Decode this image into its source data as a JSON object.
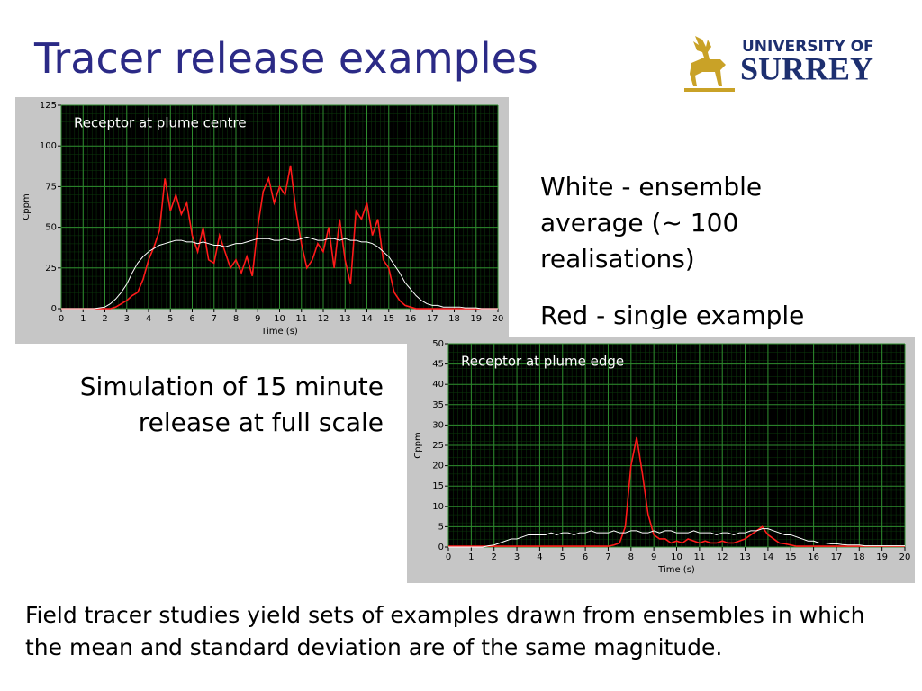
{
  "title": "Tracer release examples",
  "logo": {
    "line1": "UNIVERSITY OF",
    "line2": "SURREY"
  },
  "notes": [
    "White - ensemble average (~ 100 realisations)",
    "Red - single example"
  ],
  "caption": "Simulation of 15 minute release at full scale",
  "footer": "Field tracer studies yield sets of examples drawn from ensembles in which the mean and standard deviation are of the same magnitude.",
  "chart_data": [
    {
      "type": "line",
      "annotation": "Receptor at plume centre",
      "xlabel": "Time (s)",
      "ylabel": "Cppm",
      "x": [
        0,
        0.25,
        0.5,
        0.75,
        1,
        1.25,
        1.5,
        1.75,
        2,
        2.25,
        2.5,
        2.75,
        3,
        3.25,
        3.5,
        3.75,
        4,
        4.25,
        4.5,
        4.75,
        5,
        5.25,
        5.5,
        5.75,
        6,
        6.25,
        6.5,
        6.75,
        7,
        7.25,
        7.5,
        7.75,
        8,
        8.25,
        8.5,
        8.75,
        9,
        9.25,
        9.5,
        9.75,
        10,
        10.25,
        10.5,
        10.75,
        11,
        11.25,
        11.5,
        11.75,
        12,
        12.25,
        12.5,
        12.75,
        13,
        13.25,
        13.5,
        13.75,
        14,
        14.25,
        14.5,
        14.75,
        15,
        15.25,
        15.5,
        15.75,
        16,
        16.25,
        16.5,
        16.75,
        17,
        17.25,
        17.5,
        17.75,
        18,
        18.25,
        18.5,
        18.75,
        19,
        19.25,
        19.5,
        19.75,
        20
      ],
      "series": [
        {
          "color": "#ff1a1a",
          "values": [
            0,
            0,
            0,
            0,
            0,
            0,
            0,
            0,
            0,
            0,
            1,
            3,
            5,
            8,
            10,
            18,
            30,
            38,
            48,
            80,
            60,
            70,
            58,
            65,
            45,
            35,
            50,
            30,
            28,
            45,
            35,
            25,
            30,
            22,
            32,
            20,
            50,
            72,
            80,
            65,
            75,
            70,
            88,
            60,
            40,
            25,
            30,
            40,
            35,
            50,
            25,
            55,
            30,
            15,
            60,
            55,
            65,
            45,
            55,
            30,
            25,
            10,
            5,
            2,
            1,
            0,
            0,
            0,
            0,
            0,
            0,
            0,
            0,
            0,
            0,
            0,
            0,
            0,
            0,
            0,
            0
          ]
        },
        {
          "color": "#ffffff",
          "values": [
            0,
            0,
            0,
            0,
            0,
            0,
            0,
            0.5,
            1,
            3,
            6,
            10,
            15,
            22,
            28,
            32,
            35,
            37,
            39,
            40,
            41,
            42,
            42,
            41,
            41,
            40,
            41,
            40,
            39,
            39,
            38,
            39,
            40,
            40,
            41,
            42,
            43,
            43,
            43,
            42,
            42,
            43,
            42,
            42,
            43,
            44,
            43,
            42,
            42,
            43,
            43,
            42,
            43,
            42,
            42,
            41,
            41,
            40,
            38,
            35,
            32,
            27,
            22,
            16,
            12,
            8,
            5,
            3,
            2,
            2,
            1,
            1,
            1,
            1,
            0.5,
            0.5,
            0.5,
            0,
            0,
            0,
            0
          ]
        }
      ],
      "xlim": [
        0,
        20
      ],
      "ylim": [
        0,
        125
      ],
      "xticks": [
        0,
        1,
        2,
        3,
        4,
        5,
        6,
        7,
        8,
        9,
        10,
        11,
        12,
        13,
        14,
        15,
        16,
        17,
        18,
        19,
        20
      ],
      "yticks": [
        0,
        25,
        50,
        75,
        100,
        125
      ],
      "grid": true
    },
    {
      "type": "line",
      "annotation": "Receptor at plume edge",
      "xlabel": "Time (s)",
      "ylabel": "Cppm",
      "x": [
        0,
        0.25,
        0.5,
        0.75,
        1,
        1.25,
        1.5,
        1.75,
        2,
        2.25,
        2.5,
        2.75,
        3,
        3.25,
        3.5,
        3.75,
        4,
        4.25,
        4.5,
        4.75,
        5,
        5.25,
        5.5,
        5.75,
        6,
        6.25,
        6.5,
        6.75,
        7,
        7.25,
        7.5,
        7.75,
        8,
        8.25,
        8.5,
        8.75,
        9,
        9.25,
        9.5,
        9.75,
        10,
        10.25,
        10.5,
        10.75,
        11,
        11.25,
        11.5,
        11.75,
        12,
        12.25,
        12.5,
        12.75,
        13,
        13.25,
        13.5,
        13.75,
        14,
        14.25,
        14.5,
        14.75,
        15,
        15.25,
        15.5,
        15.75,
        16,
        16.25,
        16.5,
        16.75,
        17,
        17.25,
        17.5,
        17.75,
        18,
        18.25,
        18.5,
        18.75,
        19,
        19.25,
        19.5,
        19.75,
        20
      ],
      "series": [
        {
          "color": "#ff1a1a",
          "values": [
            0.2,
            0.2,
            0.2,
            0.2,
            0.2,
            0.2,
            0.2,
            0.2,
            0.2,
            0.2,
            0.2,
            0.2,
            0.2,
            0.2,
            0.2,
            0.2,
            0.2,
            0.2,
            0.2,
            0.2,
            0.2,
            0.2,
            0.2,
            0.2,
            0.2,
            0.2,
            0.2,
            0.2,
            0.2,
            0.5,
            1,
            5,
            20,
            27,
            18,
            8,
            3,
            2,
            2,
            1,
            1.5,
            1,
            2,
            1.5,
            1,
            1.5,
            1,
            1,
            1.5,
            1,
            1,
            1.5,
            2,
            3,
            4,
            5,
            3,
            2,
            1,
            0.8,
            0.5,
            0.2,
            0.2,
            0.2,
            0.2,
            0.2,
            0.2,
            0.2,
            0.2,
            0.2,
            0.2,
            0.2,
            0.2,
            0.2,
            0.2,
            0.2,
            0.2,
            0.2,
            0.2,
            0.2,
            0.2
          ]
        },
        {
          "color": "#ffffff",
          "values": [
            0,
            0,
            0,
            0,
            0,
            0,
            0,
            0.3,
            0.5,
            1,
            1.5,
            2,
            2,
            2.5,
            3,
            3,
            3,
            3,
            3.5,
            3,
            3.5,
            3.5,
            3,
            3.5,
            3.5,
            4,
            3.5,
            3.5,
            3.5,
            4,
            3.5,
            3.5,
            4,
            4,
            3.5,
            3.5,
            4,
            3.5,
            4,
            4,
            3.5,
            3.5,
            3.5,
            4,
            3.5,
            3.5,
            3.5,
            3,
            3.5,
            3.5,
            3,
            3.5,
            3.5,
            4,
            4,
            4.5,
            4.5,
            4,
            3.5,
            3,
            3,
            2.5,
            2,
            1.5,
            1.5,
            1,
            1,
            0.8,
            0.8,
            0.6,
            0.5,
            0.5,
            0.5,
            0.3,
            0.3,
            0.3,
            0.3,
            0.3,
            0.3,
            0.3,
            0.3
          ]
        }
      ],
      "xlim": [
        0,
        20
      ],
      "ylim": [
        0,
        50
      ],
      "xticks": [
        0,
        1,
        2,
        3,
        4,
        5,
        6,
        7,
        8,
        9,
        10,
        11,
        12,
        13,
        14,
        15,
        16,
        17,
        18,
        19,
        20
      ],
      "yticks": [
        0,
        5,
        10,
        15,
        20,
        25,
        30,
        35,
        40,
        45,
        50
      ],
      "grid": true
    }
  ]
}
